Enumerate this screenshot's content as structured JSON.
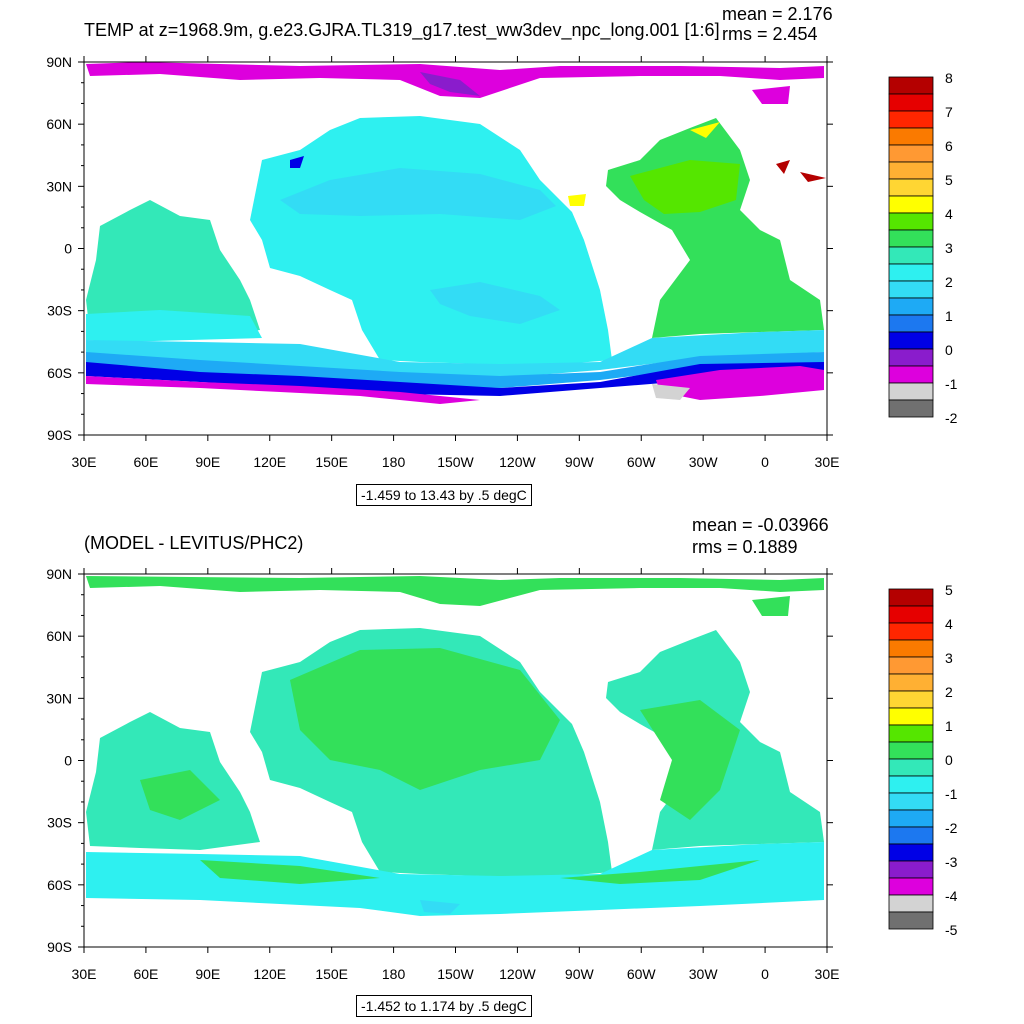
{
  "top_panel": {
    "title": "TEMP at z=1968.9m, g.e23.GJRA.TL319_g17.test_ww3dev_npc_long.001 [1:6]",
    "mean_label": "mean = 2.176",
    "rms_label": "rms = 2.454",
    "range_label": "-1.459 to 13.43 by .5 degC",
    "colorbar_labels": [
      "8",
      "7",
      "6",
      "5",
      "4",
      "3",
      "2",
      "1",
      "0",
      "-1",
      "-2"
    ]
  },
  "bottom_panel": {
    "title": "(MODEL - LEVITUS/PHC2)",
    "mean_label": "mean = -0.03966",
    "rms_label": "rms = 0.1889",
    "range_label": "-1.452 to 1.174 by .5 degC",
    "colorbar_labels": [
      "5",
      "4",
      "3",
      "2",
      "1",
      "0",
      "-1",
      "-2",
      "-3",
      "-4",
      "-5"
    ]
  },
  "axes": {
    "lat_labels": [
      "90N",
      "60N",
      "30N",
      "0",
      "30S",
      "60S",
      "90S"
    ],
    "lon_labels": [
      "30E",
      "60E",
      "90E",
      "120E",
      "150E",
      "180",
      "150W",
      "120W",
      "90W",
      "60W",
      "30W",
      "0",
      "30E"
    ]
  },
  "colors": {
    "palette_top_to_bottom": [
      "#b40000",
      "#e60000",
      "#ff2600",
      "#fa7a00",
      "#ff9933",
      "#ffb033",
      "#ffd633",
      "#ffff00",
      "#55e600",
      "#33e05a",
      "#33e8b8",
      "#2ef0f0",
      "#33dcf5",
      "#1eaaf5",
      "#1c78f0",
      "#0000e6",
      "#8a1ccc",
      "#dd00dd",
      "#d3d3d3",
      "#707070"
    ],
    "land": "#ffffff"
  }
}
